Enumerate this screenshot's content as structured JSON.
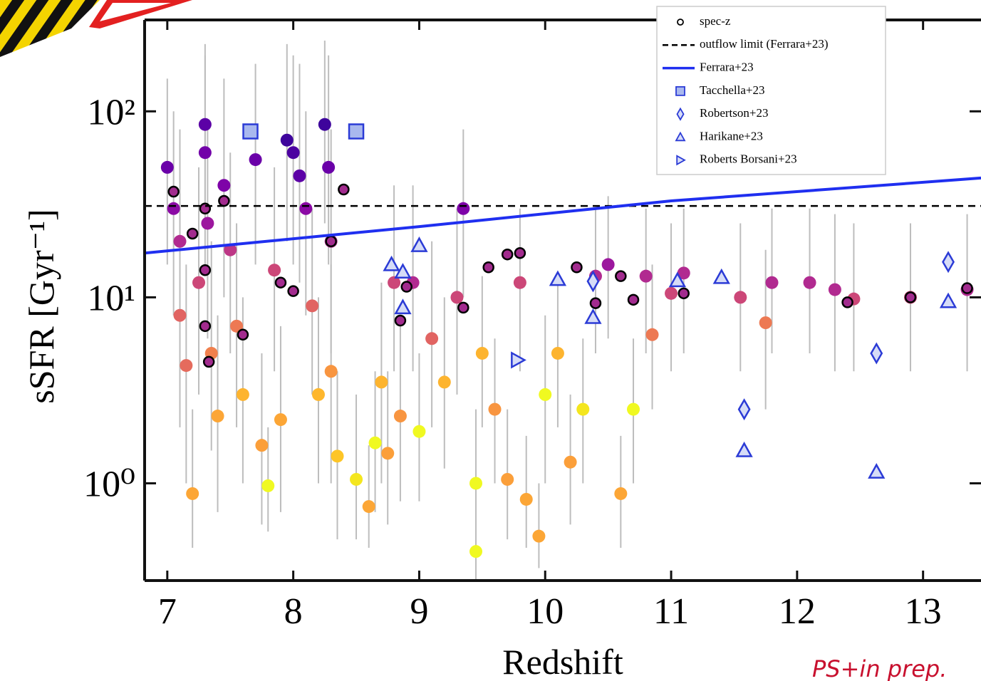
{
  "chart_data": {
    "type": "scatter",
    "xlabel": "Redshift",
    "ylabel": "sSFR [Gyr⁻¹]",
    "xlim": [
      6.82,
      13.46
    ],
    "ylim": [
      0.3,
      310
    ],
    "yscale": "log",
    "xticks": [
      7,
      8,
      9,
      10,
      11,
      12,
      13
    ],
    "yticks": [
      {
        "value": 1,
        "label": "10⁰"
      },
      {
        "value": 10,
        "label": "10¹"
      },
      {
        "value": 100,
        "label": "10²"
      }
    ],
    "legend": "upper right",
    "annotation": "PS+in prep.",
    "series": [
      {
        "kind": "scatter",
        "marker": "circle",
        "errorbar_color": "#bdbdbd",
        "x": [
          7.0,
          7.05,
          7.1,
          7.1,
          7.15,
          7.2,
          7.25,
          7.3,
          7.3,
          7.32,
          7.35,
          7.4,
          7.45,
          7.5,
          7.55,
          7.6,
          7.7,
          7.75,
          7.8,
          7.85,
          7.9,
          7.95,
          8.0,
          8.05,
          8.1,
          8.15,
          8.2,
          8.25,
          8.28,
          8.3,
          8.3,
          8.35,
          8.5,
          8.6,
          8.65,
          8.7,
          8.75,
          8.8,
          8.85,
          8.95,
          9.0,
          9.1,
          9.2,
          9.3,
          9.35,
          9.45,
          9.45,
          9.5,
          9.6,
          9.7,
          9.8,
          9.85,
          9.95,
          10.0,
          10.1,
          10.2,
          10.3,
          10.4,
          10.5,
          10.6,
          10.7,
          10.8,
          10.85,
          11.0,
          11.1,
          11.55,
          11.75,
          11.8,
          12.1,
          12.3,
          12.45,
          12.9,
          13.35
        ],
        "y": [
          50,
          30,
          20,
          8,
          4.3,
          0.88,
          12,
          85,
          60,
          25,
          5,
          2.3,
          40,
          18,
          7,
          3,
          55,
          1.6,
          0.97,
          14,
          2.2,
          70,
          60,
          45,
          30,
          9,
          3,
          85,
          50,
          20,
          4,
          1.4,
          1.05,
          0.75,
          1.65,
          3.5,
          1.45,
          12,
          2.3,
          12,
          1.9,
          6,
          3.5,
          10,
          30,
          0.43,
          1,
          5,
          2.5,
          1.05,
          12,
          0.82,
          0.52,
          3,
          5,
          1.3,
          2.5,
          13,
          15,
          0.88,
          2.5,
          13,
          6.3,
          10.5,
          13.5,
          10,
          7.3,
          12,
          12,
          11,
          9.8,
          10,
          11
        ],
        "y_low": [
          15,
          8,
          5,
          2,
          1,
          0.45,
          3,
          25,
          15,
          6,
          1.5,
          0.7,
          10,
          5,
          2,
          1,
          15,
          0.6,
          0.55,
          4,
          0.7,
          20,
          15,
          12,
          8,
          3,
          1,
          25,
          15,
          5,
          1,
          0.5,
          0.5,
          0.45,
          0.7,
          1,
          0.6,
          4,
          0.8,
          4,
          0.8,
          2,
          1.2,
          3,
          10,
          0.3,
          0.45,
          2,
          1,
          0.5,
          4,
          0.45,
          0.35,
          1,
          2,
          0.6,
          1,
          5,
          6,
          0.45,
          1,
          5,
          2.5,
          4,
          5,
          4,
          2.5,
          5,
          5,
          4,
          4,
          4,
          4
        ],
        "y_high": [
          150,
          100,
          80,
          30,
          15,
          2.5,
          50,
          230,
          200,
          90,
          20,
          8,
          150,
          60,
          25,
          10,
          180,
          5,
          2,
          50,
          7,
          230,
          200,
          180,
          100,
          30,
          10,
          240,
          200,
          80,
          15,
          4,
          3,
          1.6,
          4,
          12,
          4,
          40,
          7,
          40,
          5,
          20,
          10,
          30,
          80,
          1,
          2.5,
          13,
          6,
          2.5,
          30,
          1.8,
          1,
          8,
          13,
          3,
          6,
          30,
          35,
          1.8,
          6,
          30,
          15,
          25,
          30,
          25,
          18,
          30,
          30,
          28,
          25,
          25,
          28
        ],
        "colors": [
          "#6a00a8",
          "#8b0aa5",
          "#b12a90",
          "#e16462",
          "#e56b5d",
          "#fca636",
          "#cc4778",
          "#5c01a6",
          "#7201a8",
          "#9c179e",
          "#f0804d",
          "#fca636",
          "#7e03a8",
          "#bd3786",
          "#ed7953",
          "#fdb42f",
          "#6a00a8",
          "#fb9f3a",
          "#f0f921",
          "#cc4778",
          "#fca636",
          "#3e049c",
          "#4c02a1",
          "#5c01a6",
          "#8b0aa5",
          "#e16462",
          "#feb72d",
          "#3e049c",
          "#6a00a8",
          "#b12a90",
          "#f89540",
          "#fdc527",
          "#f4e61e",
          "#fca636",
          "#f0f921",
          "#fdb42f",
          "#fb9f3a",
          "#cc4778",
          "#f89540",
          "#b12a90",
          "#f0f921",
          "#e16462",
          "#fdb42f",
          "#cc4778",
          "#7e03a8",
          "#f0f921",
          "#f0f921",
          "#fdb42f",
          "#f89540",
          "#fb9f3a",
          "#cc4778",
          "#fca636",
          "#fca636",
          "#f0f921",
          "#fdb42f",
          "#fb9f3a",
          "#f4e61e",
          "#b12a90",
          "#9c179e",
          "#fca636",
          "#f0f921",
          "#b12a90",
          "#ed7953",
          "#cc4778",
          "#b12a90",
          "#cc4778",
          "#ed7953",
          "#b12a90",
          "#b12a90",
          "#b12a90",
          "#cc4778",
          "#cc4778",
          "#b12a90"
        ]
      },
      {
        "name": "spec-z",
        "kind": "scatter",
        "marker": "circle",
        "color": "#000000",
        "fill": "#a22b8e",
        "x": [
          7.05,
          7.2,
          7.3,
          7.3,
          7.3,
          7.33,
          7.45,
          7.6,
          7.9,
          8.0,
          8.3,
          8.4,
          8.9,
          8.85,
          9.35,
          9.55,
          9.7,
          9.8,
          10.25,
          10.4,
          10.6,
          10.7,
          11.1,
          12.4,
          12.9,
          13.35
        ],
        "y": [
          37,
          22,
          30,
          14,
          7,
          4.5,
          33,
          6.3,
          12,
          10.8,
          20,
          38,
          11.4,
          7.5,
          8.8,
          14.5,
          17,
          17.3,
          14.5,
          9.3,
          13,
          9.7,
          10.5,
          9.4,
          10,
          11.2
        ]
      },
      {
        "name": "outflow limit (Ferrara+23)",
        "kind": "hline",
        "color": "#000000",
        "values": [
          31
        ]
      },
      {
        "name": "Ferrara+23",
        "kind": "line",
        "color": "#1f2ff0",
        "x": [
          6.82,
          9,
          11,
          13.46
        ],
        "y": [
          17.3,
          24,
          33,
          43.8
        ]
      },
      {
        "name": "Tacchella+23",
        "kind": "scatter",
        "marker": "square",
        "color": "#2b3bd6",
        "fill": "#a9b8ee",
        "x": [
          7.66,
          8.5
        ],
        "y": [
          78,
          78
        ]
      },
      {
        "name": "Robertson+23",
        "kind": "scatter",
        "marker": "diamond",
        "color": "#2b3bd6",
        "fill": "#d6dcf7",
        "x": [
          10.38,
          11.58,
          12.63,
          13.2
        ],
        "y": [
          12.2,
          2.5,
          5,
          15.5
        ]
      },
      {
        "name": "Harikane+23",
        "kind": "scatter",
        "marker": "triangle",
        "color": "#2b3bd6",
        "fill": "#d6dcf7",
        "x": [
          8.78,
          8.87,
          9.0,
          8.87,
          10.1,
          10.38,
          11.05,
          11.4,
          11.58,
          12.63,
          13.2
        ],
        "y": [
          15,
          13.7,
          19,
          8.8,
          12.5,
          7.8,
          12.3,
          12.8,
          1.5,
          1.15,
          9.5
        ]
      },
      {
        "name": "Roberts Borsani+23",
        "kind": "scatter",
        "marker": "triangle-right",
        "color": "#2b3bd6",
        "fill": "#d6dcf7",
        "x": [
          9.78
        ],
        "y": [
          4.6
        ]
      }
    ]
  }
}
